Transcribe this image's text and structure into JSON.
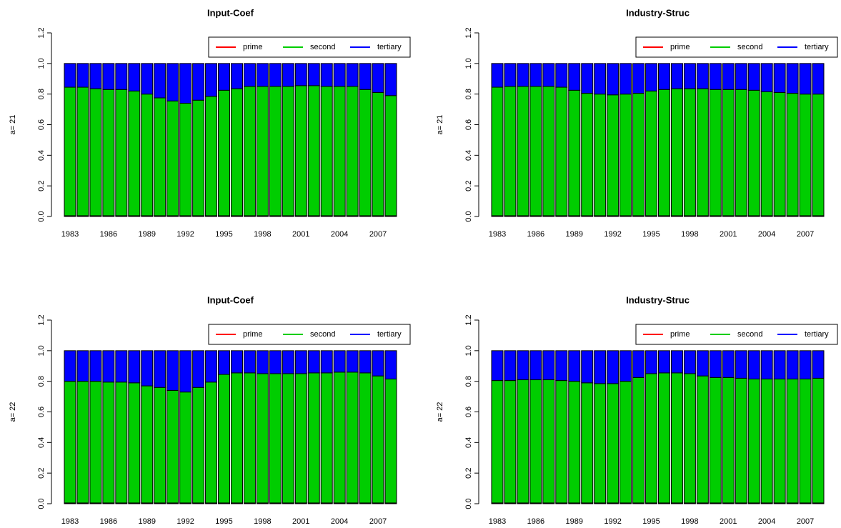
{
  "chart_data": [
    {
      "type": "bar",
      "stacked": true,
      "title": "Input-Coef",
      "ylabel": "a= 21",
      "categories": [
        "1983",
        null,
        null,
        "1986",
        null,
        null,
        "1989",
        null,
        null,
        "1992",
        null,
        null,
        "1995",
        null,
        null,
        "1998",
        null,
        null,
        "2001",
        null,
        null,
        "2004",
        null,
        null,
        "2007",
        null
      ],
      "series": [
        {
          "name": "prime",
          "color": "#ff0000",
          "values": [
            0.005,
            0.005,
            0.005,
            0.005,
            0.005,
            0.005,
            0.005,
            0.005,
            0.005,
            0.005,
            0.005,
            0.005,
            0.005,
            0.005,
            0.005,
            0.005,
            0.005,
            0.005,
            0.005,
            0.005,
            0.005,
            0.005,
            0.005,
            0.005,
            0.005,
            0.005
          ]
        },
        {
          "name": "second",
          "color": "#00cd00",
          "values": [
            0.84,
            0.84,
            0.83,
            0.825,
            0.825,
            0.815,
            0.795,
            0.77,
            0.75,
            0.735,
            0.755,
            0.78,
            0.82,
            0.83,
            0.845,
            0.845,
            0.845,
            0.845,
            0.85,
            0.85,
            0.845,
            0.845,
            0.845,
            0.825,
            0.805,
            0.785
          ]
        },
        {
          "name": "tertiary",
          "color": "#0000ff",
          "values": [
            0.155,
            0.155,
            0.165,
            0.17,
            0.17,
            0.18,
            0.2,
            0.225,
            0.245,
            0.26,
            0.24,
            0.215,
            0.175,
            0.165,
            0.15,
            0.15,
            0.15,
            0.15,
            0.145,
            0.145,
            0.15,
            0.15,
            0.15,
            0.17,
            0.19,
            0.21
          ]
        }
      ],
      "ylim": [
        0,
        1.2
      ],
      "yticks": [
        {
          "value": 0,
          "label": "0.0"
        },
        0.2,
        0.4,
        0.6,
        0.8,
        {
          "value": 1,
          "label": "1.0"
        },
        1.2
      ],
      "legend": "topright"
    },
    {
      "type": "bar",
      "stacked": true,
      "title": "Industry-Struc",
      "ylabel": "a= 21",
      "categories": [
        "1983",
        null,
        null,
        "1986",
        null,
        null,
        "1989",
        null,
        null,
        "1992",
        null,
        null,
        "1995",
        null,
        null,
        "1998",
        null,
        null,
        "2001",
        null,
        null,
        "2004",
        null,
        null,
        "2007",
        null
      ],
      "series": [
        {
          "name": "prime",
          "color": "#ff0000",
          "values": [
            0.005,
            0.005,
            0.005,
            0.005,
            0.005,
            0.005,
            0.005,
            0.005,
            0.005,
            0.005,
            0.005,
            0.005,
            0.005,
            0.005,
            0.005,
            0.005,
            0.005,
            0.005,
            0.005,
            0.005,
            0.005,
            0.005,
            0.005,
            0.005,
            0.005,
            0.005
          ]
        },
        {
          "name": "second",
          "color": "#00cd00",
          "values": [
            0.84,
            0.845,
            0.845,
            0.845,
            0.845,
            0.84,
            0.82,
            0.8,
            0.795,
            0.79,
            0.795,
            0.8,
            0.815,
            0.825,
            0.83,
            0.83,
            0.83,
            0.825,
            0.825,
            0.825,
            0.82,
            0.81,
            0.805,
            0.8,
            0.795,
            0.795
          ]
        },
        {
          "name": "tertiary",
          "color": "#0000ff",
          "values": [
            0.155,
            0.15,
            0.15,
            0.15,
            0.15,
            0.155,
            0.175,
            0.195,
            0.2,
            0.205,
            0.2,
            0.195,
            0.18,
            0.17,
            0.165,
            0.165,
            0.165,
            0.17,
            0.17,
            0.17,
            0.175,
            0.185,
            0.19,
            0.195,
            0.2,
            0.2
          ]
        }
      ],
      "ylim": [
        0,
        1.2
      ],
      "yticks": [
        {
          "value": 0,
          "label": "0.0"
        },
        0.2,
        0.4,
        0.6,
        0.8,
        {
          "value": 1,
          "label": "1.0"
        },
        1.2
      ],
      "legend": "topright"
    },
    {
      "type": "bar",
      "stacked": true,
      "title": "Input-Coef",
      "ylabel": "a= 22",
      "categories": [
        "1983",
        null,
        null,
        "1986",
        null,
        null,
        "1989",
        null,
        null,
        "1992",
        null,
        null,
        "1995",
        null,
        null,
        "1998",
        null,
        null,
        "2001",
        null,
        null,
        "2004",
        null,
        null,
        "2007",
        null
      ],
      "series": [
        {
          "name": "prime",
          "color": "#ff0000",
          "values": [
            0.005,
            0.005,
            0.005,
            0.005,
            0.005,
            0.005,
            0.005,
            0.005,
            0.005,
            0.005,
            0.005,
            0.005,
            0.005,
            0.005,
            0.005,
            0.005,
            0.005,
            0.005,
            0.005,
            0.005,
            0.005,
            0.005,
            0.005,
            0.005,
            0.005,
            0.005
          ]
        },
        {
          "name": "second",
          "color": "#00cd00",
          "values": [
            0.795,
            0.795,
            0.795,
            0.79,
            0.79,
            0.785,
            0.765,
            0.755,
            0.735,
            0.725,
            0.755,
            0.79,
            0.84,
            0.85,
            0.85,
            0.845,
            0.845,
            0.845,
            0.845,
            0.85,
            0.85,
            0.855,
            0.855,
            0.85,
            0.83,
            0.81
          ]
        },
        {
          "name": "tertiary",
          "color": "#0000ff",
          "values": [
            0.2,
            0.2,
            0.2,
            0.205,
            0.205,
            0.21,
            0.23,
            0.24,
            0.26,
            0.27,
            0.24,
            0.205,
            0.155,
            0.145,
            0.145,
            0.15,
            0.15,
            0.15,
            0.15,
            0.145,
            0.145,
            0.14,
            0.14,
            0.145,
            0.165,
            0.185
          ]
        }
      ],
      "ylim": [
        0,
        1.2
      ],
      "yticks": [
        {
          "value": 0,
          "label": "0.0"
        },
        0.2,
        0.4,
        0.6,
        0.8,
        {
          "value": 1,
          "label": "1.0"
        },
        1.2
      ],
      "legend": "topright"
    },
    {
      "type": "bar",
      "stacked": true,
      "title": "Industry-Struc",
      "ylabel": "a= 22",
      "categories": [
        "1983",
        null,
        null,
        "1986",
        null,
        null,
        "1989",
        null,
        null,
        "1992",
        null,
        null,
        "1995",
        null,
        null,
        "1998",
        null,
        null,
        "2001",
        null,
        null,
        "2004",
        null,
        null,
        "2007",
        null
      ],
      "series": [
        {
          "name": "prime",
          "color": "#ff0000",
          "values": [
            0.005,
            0.005,
            0.005,
            0.005,
            0.005,
            0.005,
            0.005,
            0.005,
            0.005,
            0.005,
            0.005,
            0.005,
            0.005,
            0.005,
            0.005,
            0.005,
            0.005,
            0.005,
            0.005,
            0.005,
            0.005,
            0.005,
            0.005,
            0.005,
            0.005,
            0.005
          ]
        },
        {
          "name": "second",
          "color": "#00cd00",
          "values": [
            0.8,
            0.8,
            0.805,
            0.805,
            0.805,
            0.8,
            0.795,
            0.785,
            0.78,
            0.78,
            0.795,
            0.82,
            0.845,
            0.85,
            0.85,
            0.845,
            0.83,
            0.82,
            0.82,
            0.815,
            0.81,
            0.81,
            0.81,
            0.81,
            0.81,
            0.815
          ]
        },
        {
          "name": "tertiary",
          "color": "#0000ff",
          "values": [
            0.195,
            0.195,
            0.19,
            0.19,
            0.19,
            0.195,
            0.2,
            0.21,
            0.215,
            0.215,
            0.2,
            0.175,
            0.15,
            0.145,
            0.145,
            0.15,
            0.165,
            0.175,
            0.175,
            0.18,
            0.185,
            0.185,
            0.185,
            0.185,
            0.185,
            0.18
          ]
        }
      ],
      "ylim": [
        0,
        1.2
      ],
      "yticks": [
        {
          "value": 0,
          "label": "0.0"
        },
        0.2,
        0.4,
        0.6,
        0.8,
        {
          "value": 1,
          "label": "1.0"
        },
        1.2
      ],
      "legend": "topright"
    }
  ]
}
